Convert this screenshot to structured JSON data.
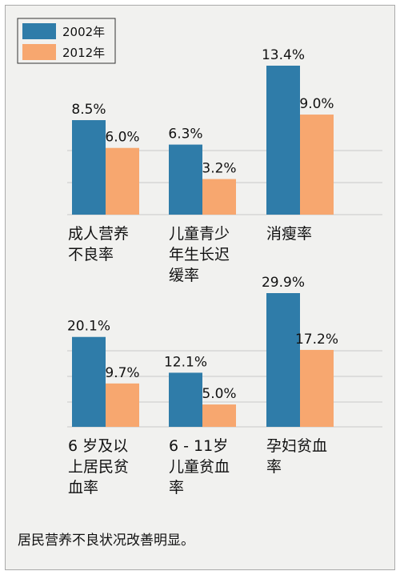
{
  "legend": {
    "series_2002": "2002年",
    "series_2012": "2012年"
  },
  "caption": "居民营养不良状况改善明显。",
  "colors": {
    "series_2002": "#2f7ca9",
    "series_2012": "#f7a76f",
    "grid": "#c9c9c9",
    "background": "#f1f1ef"
  },
  "chart_data": {
    "type": "bar",
    "units": "%",
    "series": [
      {
        "name": "2002年",
        "values": [
          8.5,
          6.3,
          13.4,
          20.1,
          12.1,
          29.9
        ]
      },
      {
        "name": "2012年",
        "values": [
          6.0,
          3.2,
          9.0,
          9.7,
          5.0,
          17.2
        ]
      }
    ],
    "panels": [
      {
        "categories": [
          "成人营养不良率",
          "儿童青少年生长迟缓率",
          "消瘦率"
        ],
        "category_lines": [
          [
            "成人营养",
            "不良率"
          ],
          [
            "儿童青少",
            "年生长迟",
            "缓率"
          ],
          [
            "消瘦率"
          ]
        ],
        "values_2002": [
          8.5,
          6.3,
          13.4
        ],
        "labels_2002": [
          "8.5%",
          "6.3%",
          "13.4%"
        ],
        "values_2012": [
          6.0,
          3.2,
          9.0
        ],
        "labels_2012": [
          "6.0%",
          "3.2%",
          "9.0%"
        ]
      },
      {
        "categories": [
          "6岁及以上居民贫血率",
          "6-11岁儿童贫血率",
          "孕妇贫血率"
        ],
        "category_lines": [
          [
            "6 岁及以",
            "上居民贫",
            "血率"
          ],
          [
            "6 - 11岁",
            "儿童贫血",
            "率"
          ],
          [
            "孕妇贫血",
            "率"
          ]
        ],
        "values_2002": [
          20.1,
          12.1,
          29.9
        ],
        "labels_2002": [
          "20.1%",
          "12.1%",
          "29.9%"
        ],
        "values_2012": [
          9.7,
          5.0,
          17.2
        ],
        "labels_2012": [
          "9.7%",
          "5.0%",
          "17.2%"
        ]
      }
    ]
  }
}
